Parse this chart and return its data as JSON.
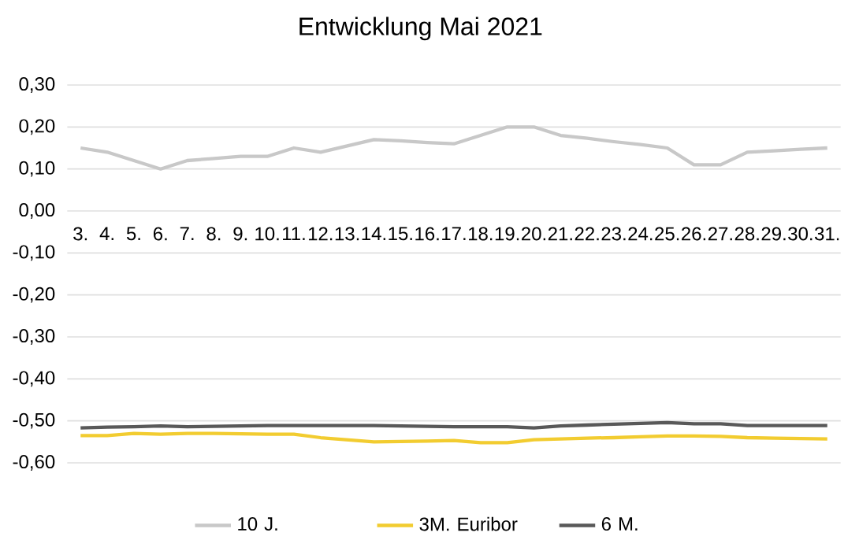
{
  "chart_data": {
    "type": "line",
    "title": "Entwicklung Mai 2021",
    "categories": [
      "3.",
      "4.",
      "5.",
      "6.",
      "7.",
      "8.",
      "9.",
      "10.",
      "11.",
      "12.",
      "13.",
      "14.",
      "15.",
      "16.",
      "17.",
      "18.",
      "19.",
      "20.",
      "21.",
      "22.",
      "23.",
      "24.",
      "25.",
      "26.",
      "27.",
      "28.",
      "29.",
      "30.",
      "31."
    ],
    "series": [
      {
        "name": "10 J.",
        "color": "#c8c8c8",
        "values": [
          0.15,
          0.14,
          0.12,
          0.1,
          0.12,
          0.125,
          0.13,
          0.13,
          0.15,
          0.14,
          0.155,
          0.17,
          0.167,
          0.163,
          0.16,
          0.18,
          0.2,
          0.2,
          0.18,
          0.173,
          0.165,
          0.158,
          0.15,
          0.11,
          0.11,
          0.14,
          0.143,
          0.147,
          0.15
        ]
      },
      {
        "name": "3M. Euribor",
        "color": "#f2cc30",
        "values": [
          -0.535,
          -0.535,
          -0.53,
          -0.532,
          -0.53,
          -0.53,
          -0.531,
          -0.532,
          -0.532,
          -0.54,
          -0.545,
          -0.55,
          -0.549,
          -0.548,
          -0.547,
          -0.552,
          -0.552,
          -0.545,
          -0.543,
          -0.541,
          -0.54,
          -0.538,
          -0.536,
          -0.536,
          -0.537,
          -0.54,
          -0.541,
          -0.542,
          -0.543
        ]
      },
      {
        "name": "6 M.",
        "color": "#595959",
        "values": [
          -0.517,
          -0.515,
          -0.514,
          -0.512,
          -0.514,
          -0.513,
          -0.512,
          -0.511,
          -0.511,
          -0.511,
          -0.511,
          -0.511,
          -0.512,
          -0.513,
          -0.514,
          -0.514,
          -0.514,
          -0.517,
          -0.512,
          -0.51,
          -0.508,
          -0.506,
          -0.504,
          -0.507,
          -0.507,
          -0.511,
          -0.511,
          -0.511,
          -0.511
        ]
      }
    ],
    "ylim": [
      -0.6,
      0.3
    ],
    "yticks": [
      {
        "value": 0.3,
        "label": "0,30"
      },
      {
        "value": 0.2,
        "label": "0,20"
      },
      {
        "value": 0.1,
        "label": "0,10"
      },
      {
        "value": 0.0,
        "label": "0,00"
      },
      {
        "value": -0.1,
        "label": "-0,10"
      },
      {
        "value": -0.2,
        "label": "-0,20"
      },
      {
        "value": -0.3,
        "label": "-0,30"
      },
      {
        "value": -0.4,
        "label": "-0,40"
      },
      {
        "value": -0.5,
        "label": "-0,50"
      },
      {
        "value": -0.6,
        "label": "-0,60"
      }
    ],
    "grid": "y",
    "legend": "bottom"
  }
}
